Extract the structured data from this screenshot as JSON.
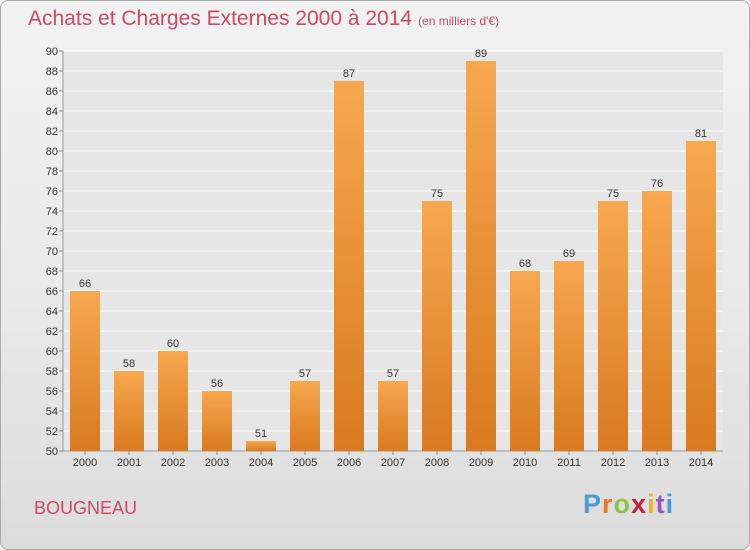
{
  "header": {
    "title": "Achats et Charges Externes 2000 à 2014",
    "unit": "(en milliers d'€)"
  },
  "footer": {
    "commune": "BOUGNEAU",
    "brand": "Proxiti",
    "brand_letter_colors": [
      "#4a9bd6",
      "#e8782a",
      "#8bc34a",
      "#c61f3a",
      "#f0b41c",
      "#9b59b6",
      "#4a9bd6"
    ]
  },
  "colors": {
    "title": "#cc4a63",
    "bar_top": "#f7a84f",
    "bar_bottom": "#d97a1e",
    "grid": "#ffffff",
    "plot_background": "#e6e6e6"
  },
  "chart_data": {
    "type": "bar",
    "title": "Achats et Charges Externes 2000 à 2014",
    "subtitle": "(en milliers d'€)",
    "xlabel": "",
    "ylabel": "",
    "categories": [
      "2000",
      "2001",
      "2002",
      "2003",
      "2004",
      "2005",
      "2006",
      "2007",
      "2008",
      "2009",
      "2010",
      "2011",
      "2012",
      "2013",
      "2014"
    ],
    "values": [
      66,
      58,
      60,
      56,
      51,
      57,
      87,
      57,
      75,
      89,
      68,
      69,
      75,
      76,
      81
    ],
    "ylim": [
      50,
      90
    ],
    "ytick_step": 2,
    "grid": true,
    "data_labels": true
  }
}
